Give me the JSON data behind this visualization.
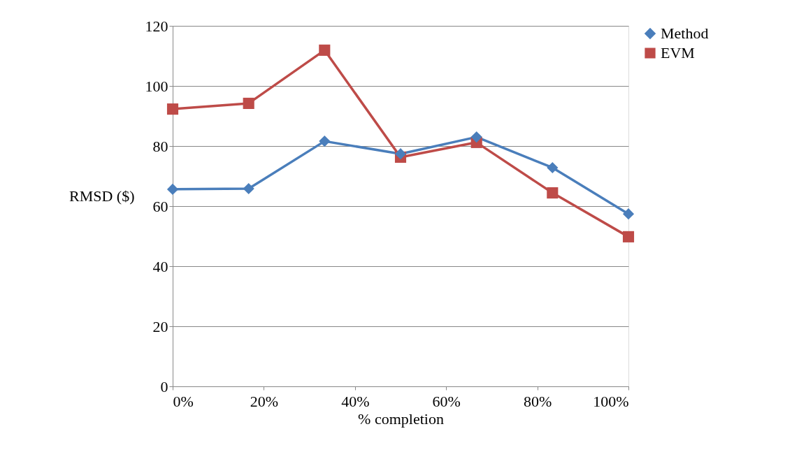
{
  "chart_data": {
    "type": "line",
    "xlabel": "% completion",
    "ylabel": "RMSD ($)",
    "x": [
      0,
      16.67,
      33.33,
      50,
      66.67,
      83.33,
      100
    ],
    "series": [
      {
        "name": "Method",
        "color": "#4a7ebb",
        "marker": "diamond",
        "values": [
          65.6,
          65.8,
          81.6,
          77.4,
          83.0,
          72.8,
          57.4
        ]
      },
      {
        "name": "EVM",
        "color": "#be4b48",
        "marker": "square",
        "values": [
          92.3,
          94.2,
          111.9,
          76.3,
          81.2,
          64.4,
          49.8
        ]
      }
    ],
    "xlim": [
      0,
      100
    ],
    "xticks": [
      {
        "value": 0,
        "label": "0%"
      },
      {
        "value": 20,
        "label": "20%"
      },
      {
        "value": 40,
        "label": "40%"
      },
      {
        "value": 60,
        "label": "60%"
      },
      {
        "value": 80,
        "label": "80%"
      },
      {
        "value": 100,
        "label": "100%"
      }
    ],
    "ylim": [
      0,
      120
    ],
    "yticks": [
      0,
      20,
      40,
      60,
      80,
      100,
      120
    ],
    "grid": "y",
    "legend": "right",
    "line_style": "solid"
  }
}
